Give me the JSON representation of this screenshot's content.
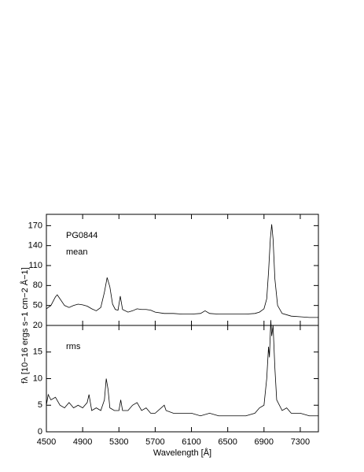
{
  "chart_data": [
    {
      "type": "line",
      "annotations": [
        "PG0844",
        "mean"
      ],
      "x": [
        4500,
        4550,
        4600,
        4620,
        4650,
        4700,
        4750,
        4800,
        4850,
        4900,
        4950,
        5000,
        5050,
        5100,
        5140,
        5170,
        5200,
        5230,
        5260,
        5290,
        5315,
        5340,
        5400,
        5450,
        5500,
        5550,
        5600,
        5650,
        5700,
        5800,
        5900,
        6000,
        6100,
        6200,
        6250,
        6300,
        6400,
        6500,
        6600,
        6700,
        6800,
        6850,
        6900,
        6930,
        6950,
        6970,
        6985,
        7000,
        7020,
        7050,
        7100,
        7200,
        7300,
        7400,
        7500
      ],
      "series": [
        {
          "color": "#000000",
          "values": [
            45,
            50,
            63,
            66,
            60,
            50,
            47,
            50,
            52,
            51,
            49,
            45,
            42,
            47,
            70,
            92,
            78,
            52,
            44,
            43,
            64,
            44,
            40,
            42,
            45,
            44,
            44,
            43,
            40,
            38,
            38,
            37,
            37,
            38,
            42,
            38,
            37,
            37,
            37,
            37,
            38,
            40,
            45,
            60,
            100,
            150,
            172,
            150,
            90,
            50,
            38,
            34,
            33,
            32,
            32
          ]
        }
      ],
      "xlim": [
        4500,
        7500
      ],
      "xticks": [
        4500,
        4900,
        5300,
        5700,
        6100,
        6500,
        6900,
        7300
      ],
      "ylim": [
        20,
        187
      ],
      "yticks": [
        50,
        80,
        110,
        140,
        170
      ]
    },
    {
      "type": "line",
      "annotations": [
        "rms"
      ],
      "xlabel": "Wavelength [Å]",
      "ylabel": "fλ [10−16 ergs s−1 cm−2 Å−1]",
      "x": [
        4500,
        4520,
        4550,
        4600,
        4650,
        4700,
        4750,
        4800,
        4850,
        4900,
        4950,
        4970,
        5000,
        5050,
        5100,
        5140,
        5160,
        5180,
        5200,
        5250,
        5300,
        5320,
        5340,
        5400,
        5450,
        5500,
        5550,
        5600,
        5650,
        5700,
        5800,
        5820,
        5900,
        6000,
        6100,
        6200,
        6300,
        6400,
        6500,
        6600,
        6700,
        6800,
        6850,
        6900,
        6930,
        6950,
        6960,
        6975,
        6985,
        7000,
        7020,
        7040,
        7100,
        7150,
        7200,
        7300,
        7400,
        7500
      ],
      "series": [
        {
          "color": "#000000",
          "values": [
            5,
            7,
            6,
            6.5,
            5,
            4.5,
            5.5,
            4.5,
            5,
            4.5,
            5.5,
            7,
            4,
            4.5,
            4,
            6,
            10,
            8,
            4.5,
            4,
            4,
            6,
            4,
            4,
            5,
            5.5,
            4,
            4.5,
            3.5,
            3.5,
            5,
            4,
            3.5,
            3.5,
            3.5,
            3,
            3.5,
            3,
            3,
            3,
            3,
            3.5,
            4.5,
            5,
            10,
            16,
            14,
            21,
            18,
            20,
            12,
            6,
            4,
            4.5,
            3.5,
            3.5,
            3,
            3
          ]
        }
      ],
      "xlim": [
        4500,
        7500
      ],
      "xticks": [
        4500,
        4900,
        5300,
        5700,
        6100,
        6500,
        6900,
        7300
      ],
      "ylim": [
        0,
        20
      ],
      "yticks": [
        0,
        5,
        10,
        15,
        20
      ]
    }
  ]
}
